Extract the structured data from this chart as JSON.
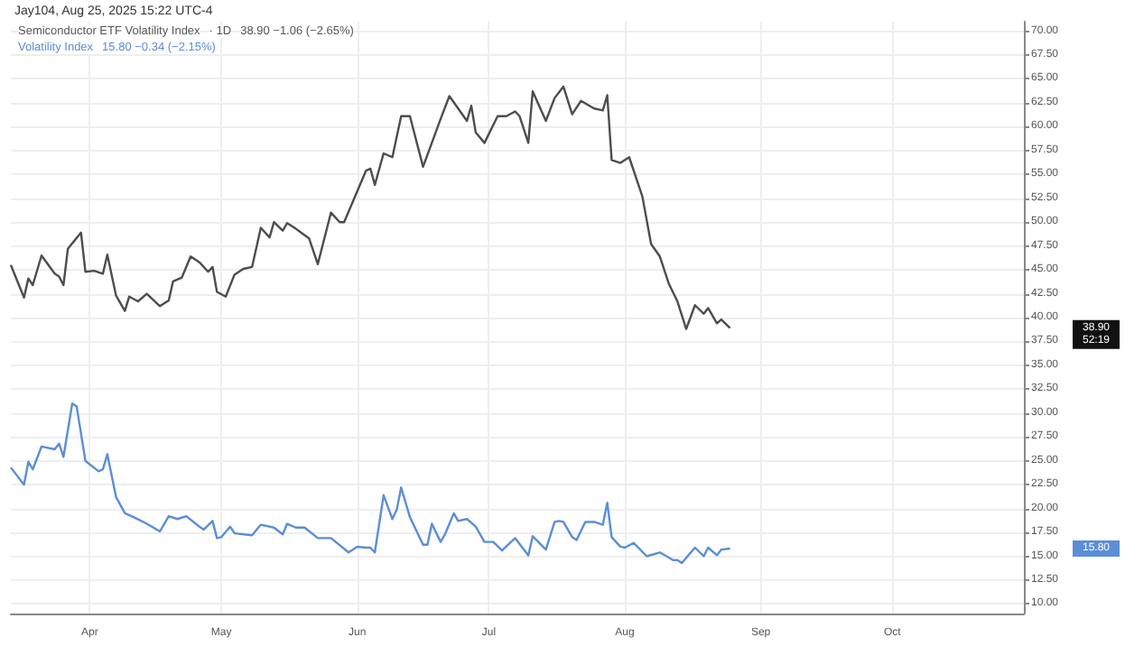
{
  "chart_data": {
    "type": "line",
    "title": "Jay104, Aug 25, 2025 15:22 UTC-4",
    "xlim": [
      "2025-03-14",
      "2025-10-31"
    ],
    "xticks": [
      {
        "value": "2025-04-01",
        "label": "Apr"
      },
      {
        "value": "2025-05-01",
        "label": "May"
      },
      {
        "value": "2025-06-01",
        "label": "Jun"
      },
      {
        "value": "2025-07-01",
        "label": "Jul"
      },
      {
        "value": "2025-08-01",
        "label": "Aug"
      },
      {
        "value": "2025-09-01",
        "label": "Sep"
      },
      {
        "value": "2025-10-01",
        "label": "Oct"
      }
    ],
    "ylim": [
      9,
      71
    ],
    "yticks": [
      {
        "value": 10,
        "label": "10.00"
      },
      {
        "value": 12.5,
        "label": "12.50"
      },
      {
        "value": 15,
        "label": "15.00"
      },
      {
        "value": 17.5,
        "label": "17.50"
      },
      {
        "value": 20,
        "label": "20.00"
      },
      {
        "value": 22.5,
        "label": "22.50"
      },
      {
        "value": 25,
        "label": "25.00"
      },
      {
        "value": 27.5,
        "label": "27.50"
      },
      {
        "value": 30,
        "label": "30.00"
      },
      {
        "value": 32.5,
        "label": "32.50"
      },
      {
        "value": 35,
        "label": "35.00"
      },
      {
        "value": 37.5,
        "label": "37.50"
      },
      {
        "value": 40,
        "label": "40.00"
      },
      {
        "value": 42.5,
        "label": "42.50"
      },
      {
        "value": 45,
        "label": "45.00"
      },
      {
        "value": 47.5,
        "label": "47.50"
      },
      {
        "value": 50,
        "label": "50.00"
      },
      {
        "value": 52.5,
        "label": "52.50"
      },
      {
        "value": 55,
        "label": "55.00"
      },
      {
        "value": 57.5,
        "label": "57.50"
      },
      {
        "value": 60,
        "label": "60.00"
      },
      {
        "value": 62.5,
        "label": "62.50"
      },
      {
        "value": 65,
        "label": "65.00"
      },
      {
        "value": 67.5,
        "label": "67.50"
      },
      {
        "value": 70,
        "label": "70.00"
      }
    ],
    "grid": true,
    "annotations": [
      "· 1D",
      "38.90 −1.06 (−2.65%)",
      "15.80 −0.34 (−2.15%)",
      "38.90",
      "52:19",
      "15.80"
    ],
    "series": [
      {
        "name": "Semiconductor ETF Volatility Index",
        "color": "#4d4d4d",
        "x": [
          "2025-03-14",
          "2025-03-17",
          "2025-03-18",
          "2025-03-19",
          "2025-03-21",
          "2025-03-24",
          "2025-03-25",
          "2025-03-26",
          "2025-03-27",
          "2025-03-30",
          "2025-03-31",
          "2025-04-02",
          "2025-04-04",
          "2025-04-05",
          "2025-04-07",
          "2025-04-09",
          "2025-04-10",
          "2025-04-12",
          "2025-04-14",
          "2025-04-17",
          "2025-04-19",
          "2025-04-20",
          "2025-04-22",
          "2025-04-24",
          "2025-04-26",
          "2025-04-28",
          "2025-04-29",
          "2025-04-30",
          "2025-05-02",
          "2025-05-04",
          "2025-05-06",
          "2025-05-08",
          "2025-05-10",
          "2025-05-12",
          "2025-05-13",
          "2025-05-15",
          "2025-05-16",
          "2025-05-18",
          "2025-05-21",
          "2025-05-23",
          "2025-05-26",
          "2025-05-28",
          "2025-05-29",
          "2025-06-03",
          "2025-06-04",
          "2025-06-05",
          "2025-06-07",
          "2025-06-09",
          "2025-06-11",
          "2025-06-13",
          "2025-06-16",
          "2025-06-20",
          "2025-06-22",
          "2025-06-26",
          "2025-06-27",
          "2025-06-28",
          "2025-06-30",
          "2025-07-03",
          "2025-07-05",
          "2025-07-07",
          "2025-07-08",
          "2025-07-10",
          "2025-07-11",
          "2025-07-14",
          "2025-07-16",
          "2025-07-18",
          "2025-07-20",
          "2025-07-22",
          "2025-07-25",
          "2025-07-27",
          "2025-07-28",
          "2025-07-29",
          "2025-07-31",
          "2025-08-02",
          "2025-08-05",
          "2025-08-07",
          "2025-08-09",
          "2025-08-11",
          "2025-08-13",
          "2025-08-15",
          "2025-08-17",
          "2025-08-19",
          "2025-08-20",
          "2025-08-22",
          "2025-08-23",
          "2025-08-25"
        ],
        "values": [
          45.5,
          42.1,
          44.1,
          43.4,
          46.5,
          44.6,
          44.3,
          43.4,
          47.2,
          48.9,
          44.8,
          44.9,
          44.6,
          46.6,
          42.3,
          40.7,
          42.2,
          41.7,
          42.5,
          41.2,
          41.8,
          43.8,
          44.2,
          46.4,
          45.8,
          44.8,
          45.3,
          42.7,
          42.2,
          44.5,
          45.1,
          45.3,
          49.4,
          48.4,
          50.0,
          49.1,
          49.9,
          49.3,
          48.3,
          45.6,
          51.0,
          50.0,
          50.0,
          55.4,
          55.6,
          53.9,
          57.2,
          56.8,
          61.1,
          61.1,
          55.8,
          60.8,
          63.2,
          60.6,
          62.2,
          59.4,
          58.3,
          61.1,
          61.1,
          61.6,
          61.1,
          58.3,
          63.7,
          60.6,
          63.0,
          64.2,
          61.3,
          62.7,
          61.9,
          61.7,
          63.3,
          56.5,
          56.2,
          56.8,
          52.7,
          47.7,
          46.4,
          43.6,
          41.7,
          38.8,
          41.3,
          40.4,
          41.0,
          39.4,
          39.8,
          38.9
        ]
      },
      {
        "name": "Volatility Index",
        "color": "#5b8ed6",
        "x": [
          "2025-03-14",
          "2025-03-17",
          "2025-03-18",
          "2025-03-19",
          "2025-03-21",
          "2025-03-24",
          "2025-03-25",
          "2025-03-26",
          "2025-03-28",
          "2025-03-29",
          "2025-03-31",
          "2025-04-03",
          "2025-04-04",
          "2025-04-05",
          "2025-04-07",
          "2025-04-09",
          "2025-04-11",
          "2025-04-14",
          "2025-04-17",
          "2025-04-19",
          "2025-04-21",
          "2025-04-23",
          "2025-04-26",
          "2025-04-27",
          "2025-04-29",
          "2025-04-30",
          "2025-05-01",
          "2025-05-03",
          "2025-05-04",
          "2025-05-08",
          "2025-05-10",
          "2025-05-13",
          "2025-05-15",
          "2025-05-16",
          "2025-05-18",
          "2025-05-20",
          "2025-05-23",
          "2025-05-26",
          "2025-05-30",
          "2025-06-01",
          "2025-06-03",
          "2025-06-04",
          "2025-06-05",
          "2025-06-07",
          "2025-06-09",
          "2025-06-10",
          "2025-06-11",
          "2025-06-13",
          "2025-06-16",
          "2025-06-17",
          "2025-06-18",
          "2025-06-20",
          "2025-06-21",
          "2025-06-23",
          "2025-06-24",
          "2025-06-26",
          "2025-06-28",
          "2025-06-30",
          "2025-07-02",
          "2025-07-04",
          "2025-07-07",
          "2025-07-10",
          "2025-07-11",
          "2025-07-14",
          "2025-07-16",
          "2025-07-17",
          "2025-07-18",
          "2025-07-20",
          "2025-07-21",
          "2025-07-23",
          "2025-07-25",
          "2025-07-27",
          "2025-07-28",
          "2025-07-29",
          "2025-07-31",
          "2025-08-01",
          "2025-08-03",
          "2025-08-06",
          "2025-08-09",
          "2025-08-12",
          "2025-08-13",
          "2025-08-14",
          "2025-08-17",
          "2025-08-19",
          "2025-08-20",
          "2025-08-22",
          "2025-08-23",
          "2025-08-25"
        ],
        "values": [
          24.3,
          22.5,
          24.9,
          24.1,
          26.5,
          26.2,
          26.8,
          25.4,
          31.0,
          30.7,
          25.0,
          23.9,
          24.1,
          25.7,
          21.2,
          19.5,
          19.1,
          18.4,
          17.6,
          19.2,
          18.9,
          19.2,
          18.1,
          17.8,
          18.7,
          16.9,
          17.0,
          18.1,
          17.4,
          17.2,
          18.3,
          18.0,
          17.3,
          18.4,
          18.0,
          18.0,
          16.9,
          16.9,
          15.4,
          16.0,
          15.9,
          15.9,
          15.4,
          21.4,
          18.9,
          19.9,
          22.2,
          19.1,
          16.2,
          16.2,
          18.4,
          16.5,
          17.3,
          19.5,
          18.7,
          18.9,
          18.1,
          16.5,
          16.5,
          15.6,
          16.9,
          15.1,
          17.1,
          15.7,
          18.6,
          18.7,
          18.6,
          17.0,
          16.7,
          18.6,
          18.6,
          18.3,
          20.6,
          17.0,
          16.0,
          15.9,
          16.4,
          15.0,
          15.4,
          14.6,
          14.6,
          14.3,
          15.9,
          15.0,
          15.9,
          15.1,
          15.7,
          15.8
        ]
      }
    ]
  }
}
